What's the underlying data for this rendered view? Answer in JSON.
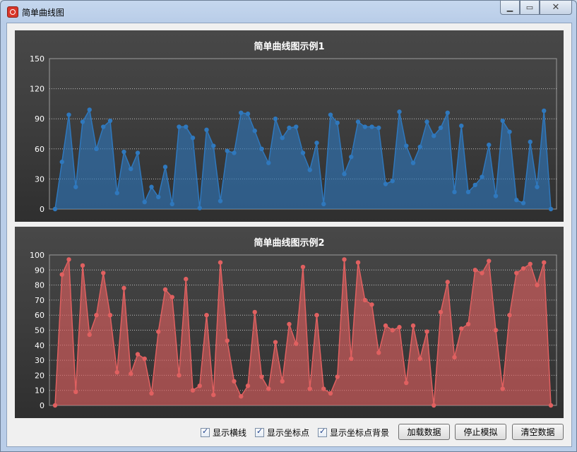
{
  "window": {
    "title": "简单曲线图"
  },
  "controls": {
    "show_hlines": "显示横线",
    "show_points": "显示坐标点",
    "show_point_bg": "显示坐标点背景",
    "load_button": "加载数据",
    "stop_button": "停止模拟",
    "clear_button": "清空数据"
  },
  "chart_data": [
    {
      "type": "area",
      "title": "简单曲线图示例1",
      "ylim": [
        0,
        150
      ],
      "yticks": [
        0,
        30,
        60,
        90,
        120,
        150
      ],
      "grid": true,
      "color": "#2f78bd",
      "values": [
        0,
        47,
        94,
        22,
        87,
        99,
        60,
        82,
        88,
        16,
        57,
        40,
        56,
        7,
        22,
        12,
        42,
        5,
        82,
        82,
        71,
        1,
        79,
        63,
        8,
        58,
        56,
        96,
        95,
        78,
        60,
        46,
        90,
        71,
        81,
        82,
        56,
        39,
        66,
        5,
        94,
        86,
        35,
        52,
        87,
        82,
        82,
        81,
        25,
        28,
        97,
        63,
        46,
        62,
        87,
        73,
        81,
        96,
        17,
        83,
        17,
        24,
        32,
        64,
        13,
        88,
        77,
        9,
        6,
        67,
        22,
        98,
        0
      ]
    },
    {
      "type": "area",
      "title": "简单曲线图示例2",
      "ylim": [
        0,
        100
      ],
      "yticks": [
        0,
        10,
        20,
        30,
        40,
        50,
        60,
        70,
        80,
        90,
        100
      ],
      "grid": true,
      "color": "#e06060",
      "values": [
        0,
        87,
        97,
        9,
        93,
        47,
        60,
        88,
        60,
        22,
        78,
        21,
        34,
        31,
        8,
        49,
        77,
        72,
        20,
        84,
        10,
        13,
        60,
        7,
        95,
        43,
        16,
        6,
        13,
        62,
        19,
        11,
        42,
        16,
        54,
        41,
        92,
        11,
        60,
        11,
        8,
        19,
        97,
        31,
        95,
        70,
        67,
        35,
        53,
        50,
        52,
        15,
        53,
        31,
        49,
        0,
        62,
        82,
        32,
        51,
        54,
        90,
        88,
        96,
        50,
        11,
        60,
        88,
        91,
        94,
        80,
        95,
        0
      ]
    }
  ]
}
